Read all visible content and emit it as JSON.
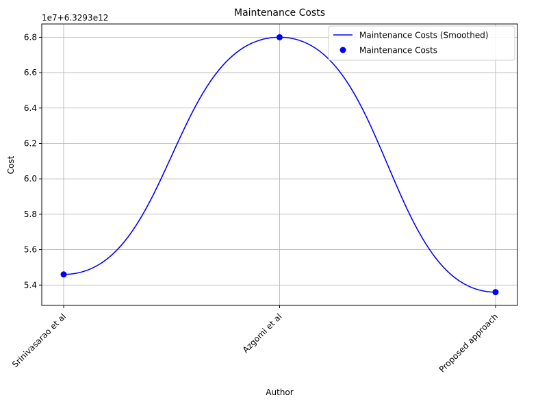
{
  "chart_data": {
    "type": "line",
    "title": "Maintenance Costs",
    "xlabel": "Author",
    "ylabel": "Cost",
    "offset_label": "1e7+6.3293e12",
    "categories": [
      "Srinivasarao et al",
      "Azgomi et al",
      "Proposed approach"
    ],
    "series": [
      {
        "name": "Maintenance Costs (Smoothed)",
        "kind": "line",
        "color": "#0000ff",
        "values": [
          5.46,
          6.8,
          5.36
        ]
      },
      {
        "name": "Maintenance Costs",
        "kind": "scatter",
        "color": "#0000ff",
        "values": [
          5.46,
          6.8,
          5.36
        ]
      }
    ],
    "ylim": [
      5.285,
      6.875
    ],
    "yticks": [
      5.4,
      5.6,
      5.8,
      6.0,
      6.2,
      6.4,
      6.6,
      6.8
    ],
    "ytick_labels": [
      "5.4",
      "5.6",
      "5.8",
      "6.0",
      "6.2",
      "6.4",
      "6.6",
      "6.8"
    ],
    "grid": true,
    "legend_position": "top-right",
    "xtick_rotation": 45
  }
}
